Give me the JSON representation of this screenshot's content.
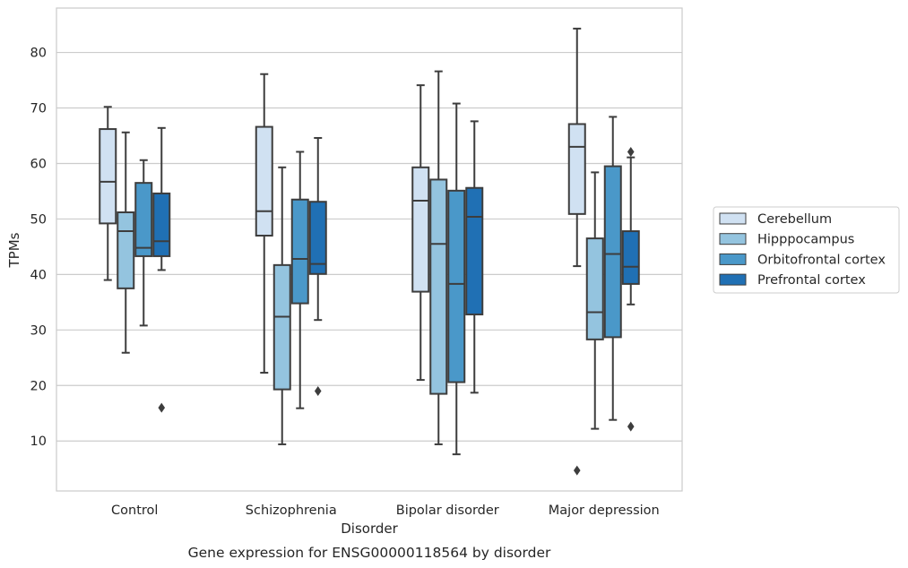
{
  "caption": "Gene expression for ENSG00000118564 by disorder",
  "chart_data": {
    "type": "box",
    "xlabel": "Disorder",
    "ylabel": "TPMs",
    "ylim": [
      1,
      88
    ],
    "yticks": [
      10,
      20,
      30,
      40,
      50,
      60,
      70,
      80
    ],
    "grid": "horizontal",
    "legend_position": "right",
    "categories": [
      "Control",
      "Schizophrenia",
      "Bipolar disorder",
      "Major depression"
    ],
    "series": [
      {
        "name": "Cerebellum",
        "color": "#d0e1f2",
        "boxes": [
          {
            "min": 39.0,
            "q1": 49.2,
            "median": 56.7,
            "q3": 66.2,
            "max": 70.2,
            "outliers": []
          },
          {
            "min": 22.3,
            "q1": 47.0,
            "median": 51.4,
            "q3": 66.6,
            "max": 76.1,
            "outliers": []
          },
          {
            "min": 21.0,
            "q1": 36.9,
            "median": 53.3,
            "q3": 59.3,
            "max": 74.1,
            "outliers": []
          },
          {
            "min": 41.5,
            "q1": 50.9,
            "median": 63.0,
            "q3": 67.1,
            "max": 84.3,
            "outliers": [
              4.7
            ]
          }
        ]
      },
      {
        "name": "Hipppocampus",
        "color": "#94c4df",
        "boxes": [
          {
            "min": 25.9,
            "q1": 37.5,
            "median": 47.8,
            "q3": 51.2,
            "max": 65.6,
            "outliers": []
          },
          {
            "min": 9.4,
            "q1": 19.3,
            "median": 32.4,
            "q3": 41.7,
            "max": 59.3,
            "outliers": []
          },
          {
            "min": 9.4,
            "q1": 18.5,
            "median": 45.5,
            "q3": 57.1,
            "max": 76.6,
            "outliers": []
          },
          {
            "min": 12.2,
            "q1": 28.3,
            "median": 33.2,
            "q3": 46.5,
            "max": 58.4,
            "outliers": []
          }
        ]
      },
      {
        "name": "Orbitofrontal cortex",
        "color": "#4a98c9",
        "boxes": [
          {
            "min": 30.8,
            "q1": 43.3,
            "median": 44.8,
            "q3": 56.5,
            "max": 60.6,
            "outliers": []
          },
          {
            "min": 15.9,
            "q1": 34.8,
            "median": 42.8,
            "q3": 53.5,
            "max": 62.1,
            "outliers": []
          },
          {
            "min": 7.6,
            "q1": 20.6,
            "median": 38.3,
            "q3": 55.1,
            "max": 70.8,
            "outliers": []
          },
          {
            "min": 13.8,
            "q1": 28.7,
            "median": 43.7,
            "q3": 59.5,
            "max": 68.4,
            "outliers": []
          }
        ]
      },
      {
        "name": "Prefrontal cortex",
        "color": "#2070b4",
        "boxes": [
          {
            "min": 40.8,
            "q1": 43.3,
            "median": 46.0,
            "q3": 54.6,
            "max": 66.4,
            "outliers": [
              16.0
            ]
          },
          {
            "min": 31.8,
            "q1": 40.1,
            "median": 41.9,
            "q3": 53.1,
            "max": 64.6,
            "outliers": [
              19.0
            ]
          },
          {
            "min": 18.7,
            "q1": 32.8,
            "median": 50.4,
            "q3": 55.6,
            "max": 67.6,
            "outliers": []
          },
          {
            "min": 34.6,
            "q1": 38.3,
            "median": 41.4,
            "q3": 47.8,
            "max": 61.1,
            "outliers": [
              62.1,
              12.6
            ]
          }
        ]
      }
    ]
  }
}
